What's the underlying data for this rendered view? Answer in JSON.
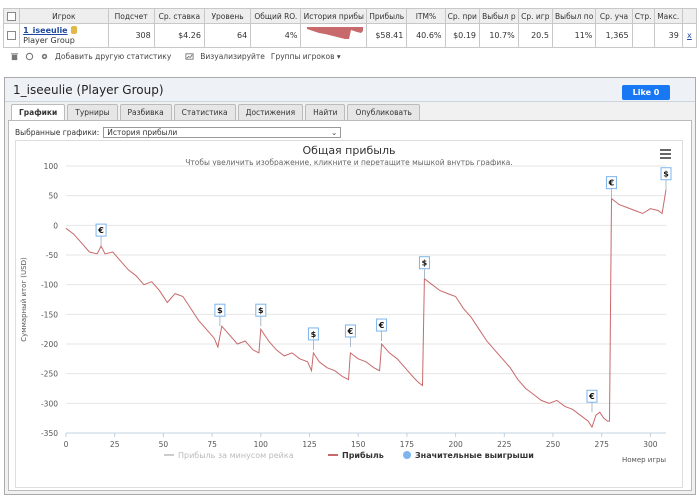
{
  "table": {
    "headers": [
      "Игрок",
      "Подсчет",
      "Ср. ставка",
      "Уровень",
      "Общий RO.",
      "История прибы",
      "Прибыль",
      "ITM%",
      "Ср. при",
      "Выбыл р",
      "Ср. игр",
      "Выбыл по",
      "Ср. уча",
      "Стр.",
      "Макс."
    ],
    "player": {
      "name": "1_iseeulie",
      "group": "Player Group"
    },
    "values": [
      "308",
      "$4.26",
      "64",
      "4%",
      "$58.41",
      "40.6%",
      "$0.19",
      "10.7%",
      "20.5",
      "11%",
      "1,365",
      "",
      "39"
    ],
    "x_label": "x"
  },
  "toolbar": {
    "add_stat": "Добавить другую статистику",
    "visualize": "Визуализируйте",
    "groups": "Группы игроков ▾"
  },
  "panel": {
    "title": "1_iseeulie (Player Group)",
    "fb_like": "Like 0",
    "tabs": [
      "Графики",
      "Турниры",
      "Разбивка",
      "Статистика",
      "Достижения",
      "Найти",
      "Опубликовать"
    ],
    "active_tab": 0,
    "selected_label": "Выбранные графики:",
    "selected_value": "История прибыли"
  },
  "colors": {
    "line": "#c8696b",
    "line_gray": "#cccccc",
    "dot": "#7cb5ec"
  },
  "chart_data": {
    "type": "line",
    "title": "Общая прибыль",
    "subtitle": "Чтобы увеличить изображение, кликните и перетащите мышкой внутрь графика.",
    "xlabel": "Номер игры",
    "ylabel": "Суммарный итог (USD)",
    "xlim": [
      0,
      308
    ],
    "ylim": [
      -350,
      100
    ],
    "xticks": [
      0,
      25,
      50,
      75,
      100,
      125,
      150,
      175,
      200,
      225,
      250,
      275,
      300
    ],
    "yticks": [
      100,
      50,
      0,
      -50,
      -100,
      -150,
      -200,
      -250,
      -300,
      -350
    ],
    "legend": [
      "Прибыль за минусом рейка",
      "Прибыль",
      "Значительные выигрыши"
    ],
    "series": [
      {
        "name": "Прибыль",
        "x": [
          0,
          4,
          8,
          12,
          16,
          18,
          20,
          24,
          28,
          32,
          36,
          40,
          44,
          48,
          52,
          56,
          60,
          64,
          68,
          72,
          76,
          78,
          80,
          84,
          88,
          92,
          96,
          99,
          100,
          104,
          108,
          112,
          116,
          120,
          124,
          126,
          127,
          130,
          134,
          138,
          142,
          145,
          146,
          150,
          154,
          158,
          161,
          162,
          166,
          170,
          174,
          178,
          181,
          183,
          184,
          188,
          192,
          196,
          200,
          204,
          208,
          212,
          216,
          220,
          224,
          228,
          232,
          236,
          240,
          244,
          248,
          252,
          256,
          260,
          264,
          268,
          270,
          272,
          274,
          276,
          278,
          279,
          280,
          284,
          288,
          292,
          296,
          300,
          304,
          306,
          308
        ],
        "y": [
          -5,
          -15,
          -30,
          -45,
          -48,
          -35,
          -48,
          -45,
          -60,
          -75,
          -85,
          -100,
          -95,
          -110,
          -130,
          -115,
          -120,
          -140,
          -160,
          -175,
          -190,
          -205,
          -170,
          -185,
          -200,
          -195,
          -210,
          -215,
          -175,
          -195,
          -210,
          -220,
          -215,
          -225,
          -230,
          -245,
          -215,
          -230,
          -240,
          -245,
          -255,
          -260,
          -215,
          -225,
          -230,
          -240,
          -245,
          -200,
          -215,
          -225,
          -240,
          -255,
          -265,
          -270,
          -90,
          -100,
          -110,
          -115,
          -120,
          -140,
          -155,
          -175,
          -195,
          -210,
          -225,
          -240,
          -260,
          -275,
          -285,
          -295,
          -300,
          -295,
          -305,
          -310,
          -320,
          -330,
          -340,
          -320,
          -315,
          -325,
          -330,
          -330,
          45,
          35,
          30,
          25,
          20,
          28,
          25,
          20,
          60
        ]
      }
    ],
    "annotations": [
      {
        "x": 18,
        "y": -35,
        "label": "€"
      },
      {
        "x": 79,
        "y": -170,
        "label": "$"
      },
      {
        "x": 100,
        "y": -170,
        "label": "$"
      },
      {
        "x": 127,
        "y": -210,
        "label": "$"
      },
      {
        "x": 146,
        "y": -205,
        "label": "€"
      },
      {
        "x": 162,
        "y": -195,
        "label": "€"
      },
      {
        "x": 184,
        "y": -90,
        "label": "$"
      },
      {
        "x": 270,
        "y": -315,
        "label": "€"
      },
      {
        "x": 280,
        "y": 45,
        "label": "€"
      },
      {
        "x": 308,
        "y": 60,
        "label": "$"
      }
    ]
  }
}
